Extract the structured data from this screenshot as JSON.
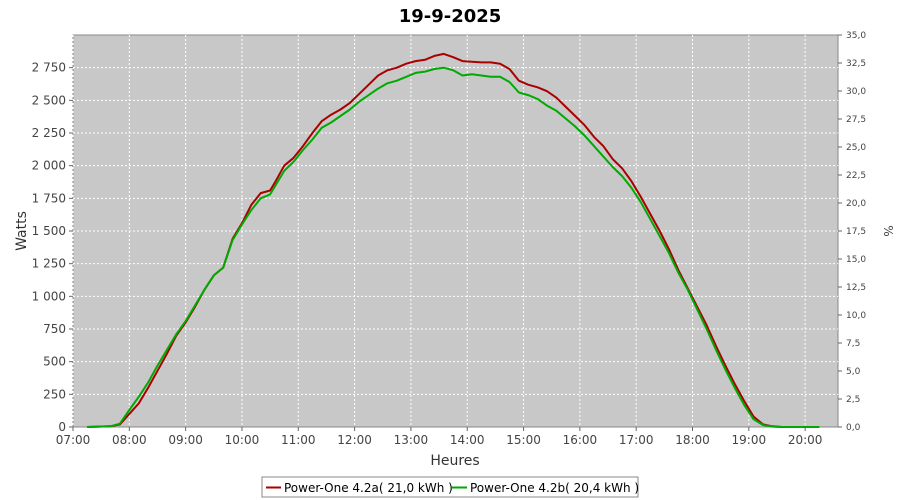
{
  "chart_data": {
    "type": "line",
    "title": "19-9-2025",
    "xlabel": "Heures",
    "ylabel": "Watts",
    "y2label": "%",
    "grid": true,
    "legend_position": "bottom",
    "x_tick_labels": [
      "07:00",
      "08:00",
      "09:00",
      "10:00",
      "11:00",
      "12:00",
      "13:00",
      "14:00",
      "15:00",
      "16:00",
      "17:00",
      "18:00",
      "19:00",
      "20:00"
    ],
    "y_tick_labels": [
      "0",
      "250",
      "500",
      "750",
      "1 000",
      "1 250",
      "1 500",
      "1 750",
      "2 000",
      "2 250",
      "2 500",
      "2 750"
    ],
    "y_ticks": [
      0,
      250,
      500,
      750,
      1000,
      1250,
      1500,
      1750,
      2000,
      2250,
      2500,
      2750
    ],
    "y2_tick_labels": [
      "0,0",
      "2,5",
      "5,0",
      "7,5",
      "10,0",
      "12,5",
      "15,0",
      "17,5",
      "20,0",
      "22,5",
      "25,0",
      "27,5",
      "30,0",
      "32,5",
      "35,0"
    ],
    "y2_ticks": [
      0,
      2.5,
      5,
      7.5,
      10,
      12.5,
      15,
      17.5,
      20,
      22.5,
      25,
      27.5,
      30,
      32.5,
      35
    ],
    "xlim": [
      "07:00",
      "20:35"
    ],
    "ylim": [
      0,
      3000
    ],
    "y2lim": [
      0,
      35
    ],
    "series": [
      {
        "name": "Power-One 4.2a( 21,0 kWh )",
        "color": "#aa0000",
        "points": [
          [
            "07:15",
            0
          ],
          [
            "07:40",
            5
          ],
          [
            "07:50",
            20
          ],
          [
            "08:00",
            100
          ],
          [
            "08:10",
            180
          ],
          [
            "08:20",
            300
          ],
          [
            "08:30",
            430
          ],
          [
            "08:40",
            560
          ],
          [
            "08:50",
            700
          ],
          [
            "09:00",
            800
          ],
          [
            "09:10",
            920
          ],
          [
            "09:20",
            1050
          ],
          [
            "09:30",
            1160
          ],
          [
            "09:40",
            1220
          ],
          [
            "09:50",
            1440
          ],
          [
            "10:00",
            1560
          ],
          [
            "10:10",
            1700
          ],
          [
            "10:20",
            1790
          ],
          [
            "10:30",
            1810
          ],
          [
            "10:35",
            1870
          ],
          [
            "10:45",
            2000
          ],
          [
            "10:55",
            2060
          ],
          [
            "11:05",
            2150
          ],
          [
            "11:15",
            2250
          ],
          [
            "11:25",
            2340
          ],
          [
            "11:35",
            2390
          ],
          [
            "11:45",
            2430
          ],
          [
            "11:55",
            2480
          ],
          [
            "12:05",
            2550
          ],
          [
            "12:15",
            2620
          ],
          [
            "12:25",
            2690
          ],
          [
            "12:35",
            2730
          ],
          [
            "12:45",
            2750
          ],
          [
            "12:55",
            2780
          ],
          [
            "13:05",
            2800
          ],
          [
            "13:15",
            2810
          ],
          [
            "13:25",
            2840
          ],
          [
            "13:35",
            2855
          ],
          [
            "13:45",
            2830
          ],
          [
            "13:55",
            2800
          ],
          [
            "14:05",
            2795
          ],
          [
            "14:15",
            2790
          ],
          [
            "14:25",
            2790
          ],
          [
            "14:35",
            2780
          ],
          [
            "14:45",
            2740
          ],
          [
            "14:55",
            2650
          ],
          [
            "15:05",
            2620
          ],
          [
            "15:15",
            2600
          ],
          [
            "15:25",
            2570
          ],
          [
            "15:35",
            2520
          ],
          [
            "15:45",
            2450
          ],
          [
            "15:55",
            2380
          ],
          [
            "16:05",
            2310
          ],
          [
            "16:15",
            2220
          ],
          [
            "16:25",
            2150
          ],
          [
            "16:35",
            2050
          ],
          [
            "16:45",
            1980
          ],
          [
            "16:55",
            1880
          ],
          [
            "17:05",
            1760
          ],
          [
            "17:15",
            1630
          ],
          [
            "17:25",
            1500
          ],
          [
            "17:35",
            1360
          ],
          [
            "17:45",
            1200
          ],
          [
            "17:55",
            1060
          ],
          [
            "18:05",
            920
          ],
          [
            "18:15",
            780
          ],
          [
            "18:25",
            620
          ],
          [
            "18:35",
            470
          ],
          [
            "18:45",
            330
          ],
          [
            "18:55",
            200
          ],
          [
            "19:05",
            80
          ],
          [
            "19:15",
            20
          ],
          [
            "19:25",
            5
          ],
          [
            "19:35",
            0
          ],
          [
            "20:15",
            0
          ]
        ]
      },
      {
        "name": "Power-One 4.2b( 20,4 kWh )",
        "color": "#00aa00",
        "points": [
          [
            "07:15",
            0
          ],
          [
            "07:40",
            5
          ],
          [
            "07:50",
            25
          ],
          [
            "08:00",
            130
          ],
          [
            "08:10",
            230
          ],
          [
            "08:20",
            340
          ],
          [
            "08:30",
            470
          ],
          [
            "08:40",
            590
          ],
          [
            "08:50",
            710
          ],
          [
            "09:00",
            810
          ],
          [
            "09:10",
            930
          ],
          [
            "09:20",
            1050
          ],
          [
            "09:30",
            1160
          ],
          [
            "09:40",
            1220
          ],
          [
            "09:50",
            1430
          ],
          [
            "10:00",
            1550
          ],
          [
            "10:10",
            1660
          ],
          [
            "10:20",
            1750
          ],
          [
            "10:30",
            1780
          ],
          [
            "10:35",
            1840
          ],
          [
            "10:45",
            1960
          ],
          [
            "10:55",
            2030
          ],
          [
            "11:05",
            2120
          ],
          [
            "11:15",
            2200
          ],
          [
            "11:25",
            2290
          ],
          [
            "11:35",
            2330
          ],
          [
            "11:45",
            2380
          ],
          [
            "11:55",
            2430
          ],
          [
            "12:05",
            2490
          ],
          [
            "12:15",
            2540
          ],
          [
            "12:25",
            2590
          ],
          [
            "12:35",
            2630
          ],
          [
            "12:45",
            2650
          ],
          [
            "12:55",
            2680
          ],
          [
            "13:05",
            2710
          ],
          [
            "13:15",
            2720
          ],
          [
            "13:25",
            2740
          ],
          [
            "13:35",
            2750
          ],
          [
            "13:45",
            2730
          ],
          [
            "13:55",
            2690
          ],
          [
            "14:05",
            2700
          ],
          [
            "14:15",
            2690
          ],
          [
            "14:25",
            2680
          ],
          [
            "14:35",
            2680
          ],
          [
            "14:45",
            2640
          ],
          [
            "14:55",
            2560
          ],
          [
            "15:05",
            2540
          ],
          [
            "15:15",
            2510
          ],
          [
            "15:25",
            2460
          ],
          [
            "15:35",
            2420
          ],
          [
            "15:45",
            2360
          ],
          [
            "15:55",
            2300
          ],
          [
            "16:05",
            2230
          ],
          [
            "16:15",
            2150
          ],
          [
            "16:25",
            2070
          ],
          [
            "16:35",
            1990
          ],
          [
            "16:45",
            1920
          ],
          [
            "16:55",
            1830
          ],
          [
            "17:05",
            1720
          ],
          [
            "17:15",
            1590
          ],
          [
            "17:25",
            1460
          ],
          [
            "17:35",
            1330
          ],
          [
            "17:45",
            1180
          ],
          [
            "17:55",
            1050
          ],
          [
            "18:05",
            900
          ],
          [
            "18:15",
            750
          ],
          [
            "18:25",
            590
          ],
          [
            "18:35",
            440
          ],
          [
            "18:45",
            300
          ],
          [
            "18:55",
            170
          ],
          [
            "19:05",
            60
          ],
          [
            "19:15",
            15
          ],
          [
            "19:25",
            3
          ],
          [
            "19:35",
            0
          ],
          [
            "20:15",
            0
          ]
        ]
      }
    ]
  }
}
